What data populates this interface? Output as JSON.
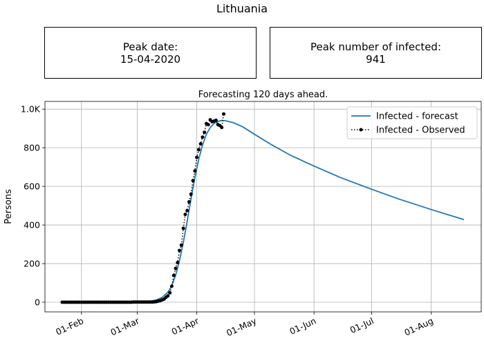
{
  "figure_title": "Lithuania",
  "info_boxes": {
    "peak_date_label": "Peak date:",
    "peak_date_value": "15-04-2020",
    "peak_count_label": "Peak number of infected:",
    "peak_count_value": "941"
  },
  "chart_data": {
    "type": "line",
    "title": "Forecasting 120 days ahead.",
    "xlabel": "",
    "ylabel": "Persons",
    "x_axis": {
      "type": "date",
      "min": "2020-01-13",
      "max": "2020-08-27",
      "ticks": [
        {
          "date": "2020-02-01",
          "label": "01-Feb"
        },
        {
          "date": "2020-03-01",
          "label": "01-Mar"
        },
        {
          "date": "2020-04-01",
          "label": "01-Apr"
        },
        {
          "date": "2020-05-01",
          "label": "01-May"
        },
        {
          "date": "2020-06-01",
          "label": "01-Jun"
        },
        {
          "date": "2020-07-01",
          "label": "01-Jul"
        },
        {
          "date": "2020-08-01",
          "label": "01-Aug"
        }
      ]
    },
    "y_axis": {
      "min": -50,
      "max": 1040,
      "ticks": [
        {
          "value": 0,
          "label": "0"
        },
        {
          "value": 200,
          "label": "200"
        },
        {
          "value": 400,
          "label": "400"
        },
        {
          "value": 600,
          "label": "600"
        },
        {
          "value": 800,
          "label": "800"
        },
        {
          "value": 1000,
          "label": "1.0K"
        }
      ]
    },
    "grid": true,
    "legend_position": "top-right",
    "series": [
      {
        "name": "Infected - forecast",
        "style": "solid",
        "color": "#1f77b4",
        "points": [
          [
            "2020-01-22",
            0
          ],
          [
            "2020-02-01",
            0
          ],
          [
            "2020-02-15",
            0
          ],
          [
            "2020-02-25",
            0
          ],
          [
            "2020-03-01",
            1
          ],
          [
            "2020-03-05",
            3
          ],
          [
            "2020-03-08",
            6
          ],
          [
            "2020-03-11",
            12
          ],
          [
            "2020-03-14",
            25
          ],
          [
            "2020-03-17",
            52
          ],
          [
            "2020-03-19",
            85
          ],
          [
            "2020-03-21",
            140
          ],
          [
            "2020-03-23",
            215
          ],
          [
            "2020-03-25",
            310
          ],
          [
            "2020-03-27",
            420
          ],
          [
            "2020-03-29",
            535
          ],
          [
            "2020-03-31",
            645
          ],
          [
            "2020-04-02",
            740
          ],
          [
            "2020-04-04",
            815
          ],
          [
            "2020-04-06",
            870
          ],
          [
            "2020-04-08",
            905
          ],
          [
            "2020-04-10",
            926
          ],
          [
            "2020-04-12",
            937
          ],
          [
            "2020-04-14",
            941
          ],
          [
            "2020-04-16",
            940
          ],
          [
            "2020-04-20",
            930
          ],
          [
            "2020-04-25",
            908
          ],
          [
            "2020-05-01",
            870
          ],
          [
            "2020-05-10",
            815
          ],
          [
            "2020-05-20",
            760
          ],
          [
            "2020-06-01",
            705
          ],
          [
            "2020-06-15",
            645
          ],
          [
            "2020-07-01",
            585
          ],
          [
            "2020-07-15",
            535
          ],
          [
            "2020-08-01",
            480
          ],
          [
            "2020-08-18",
            428
          ]
        ]
      },
      {
        "name": "Infected - Observed",
        "style": "dotted",
        "marker": "circle",
        "color": "#000000",
        "points": [
          [
            "2020-01-22",
            0
          ],
          [
            "2020-01-23",
            0
          ],
          [
            "2020-01-24",
            0
          ],
          [
            "2020-01-25",
            0
          ],
          [
            "2020-01-26",
            0
          ],
          [
            "2020-01-27",
            0
          ],
          [
            "2020-01-28",
            0
          ],
          [
            "2020-01-29",
            0
          ],
          [
            "2020-01-30",
            0
          ],
          [
            "2020-01-31",
            0
          ],
          [
            "2020-02-01",
            0
          ],
          [
            "2020-02-02",
            0
          ],
          [
            "2020-02-03",
            0
          ],
          [
            "2020-02-04",
            0
          ],
          [
            "2020-02-05",
            0
          ],
          [
            "2020-02-06",
            0
          ],
          [
            "2020-02-07",
            0
          ],
          [
            "2020-02-08",
            0
          ],
          [
            "2020-02-09",
            0
          ],
          [
            "2020-02-10",
            0
          ],
          [
            "2020-02-11",
            0
          ],
          [
            "2020-02-12",
            0
          ],
          [
            "2020-02-13",
            0
          ],
          [
            "2020-02-14",
            0
          ],
          [
            "2020-02-15",
            0
          ],
          [
            "2020-02-16",
            0
          ],
          [
            "2020-02-17",
            0
          ],
          [
            "2020-02-18",
            0
          ],
          [
            "2020-02-19",
            0
          ],
          [
            "2020-02-20",
            0
          ],
          [
            "2020-02-21",
            0
          ],
          [
            "2020-02-22",
            0
          ],
          [
            "2020-02-23",
            0
          ],
          [
            "2020-02-24",
            0
          ],
          [
            "2020-02-25",
            0
          ],
          [
            "2020-02-26",
            0
          ],
          [
            "2020-02-27",
            0
          ],
          [
            "2020-02-28",
            1
          ],
          [
            "2020-02-29",
            1
          ],
          [
            "2020-03-01",
            1
          ],
          [
            "2020-03-02",
            1
          ],
          [
            "2020-03-03",
            1
          ],
          [
            "2020-03-04",
            1
          ],
          [
            "2020-03-05",
            1
          ],
          [
            "2020-03-06",
            1
          ],
          [
            "2020-03-07",
            1
          ],
          [
            "2020-03-08",
            1
          ],
          [
            "2020-03-09",
            1
          ],
          [
            "2020-03-10",
            2
          ],
          [
            "2020-03-11",
            3
          ],
          [
            "2020-03-12",
            6
          ],
          [
            "2020-03-13",
            8
          ],
          [
            "2020-03-14",
            12
          ],
          [
            "2020-03-15",
            16
          ],
          [
            "2020-03-16",
            26
          ],
          [
            "2020-03-17",
            33
          ],
          [
            "2020-03-18",
            49
          ],
          [
            "2020-03-19",
            83
          ],
          [
            "2020-03-20",
            139
          ],
          [
            "2020-03-21",
            175
          ],
          [
            "2020-03-22",
            205
          ],
          [
            "2020-03-23",
            268
          ],
          [
            "2020-03-24",
            296
          ],
          [
            "2020-03-25",
            383
          ],
          [
            "2020-03-26",
            455
          ],
          [
            "2020-03-27",
            475
          ],
          [
            "2020-03-28",
            520
          ],
          [
            "2020-03-29",
            560
          ],
          [
            "2020-03-30",
            630
          ],
          [
            "2020-03-31",
            680
          ],
          [
            "2020-04-01",
            750
          ],
          [
            "2020-04-02",
            790
          ],
          [
            "2020-04-03",
            820
          ],
          [
            "2020-04-04",
            855
          ],
          [
            "2020-04-05",
            880
          ],
          [
            "2020-04-06",
            925
          ],
          [
            "2020-04-07",
            920
          ],
          [
            "2020-04-08",
            945
          ],
          [
            "2020-04-09",
            935
          ],
          [
            "2020-04-10",
            938
          ],
          [
            "2020-04-11",
            942
          ],
          [
            "2020-04-12",
            920
          ],
          [
            "2020-04-13",
            915
          ],
          [
            "2020-04-14",
            905
          ],
          [
            "2020-04-15",
            975
          ]
        ]
      }
    ]
  }
}
